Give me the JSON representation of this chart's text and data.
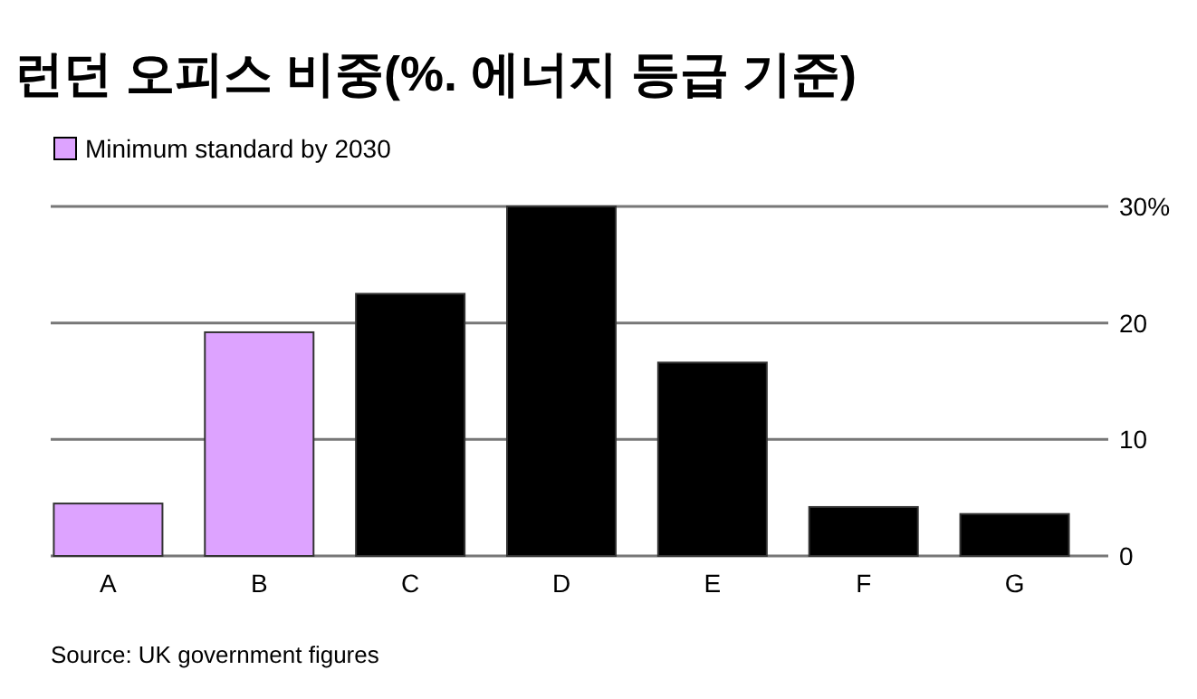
{
  "chart_data": {
    "type": "bar",
    "title": "런던 오피스 비중(%. 에너지 등급 기준)",
    "categories": [
      "A",
      "B",
      "C",
      "D",
      "E",
      "F",
      "G"
    ],
    "series": [
      {
        "name": "Minimum standard by 2030",
        "color": "#dda3ff",
        "values": [
          4.5,
          19.2,
          null,
          null,
          null,
          null,
          null
        ]
      },
      {
        "color": "#000000",
        "values": [
          null,
          null,
          22.5,
          30,
          16.6,
          4.2,
          3.6
        ]
      }
    ],
    "ylim": [
      0,
      30
    ],
    "yticks": [
      0,
      10,
      20,
      {
        "value": 30,
        "label": "30%"
      }
    ],
    "grid": "y",
    "legend": "top left",
    "annotations": [
      "Source: UK government figures"
    ]
  }
}
